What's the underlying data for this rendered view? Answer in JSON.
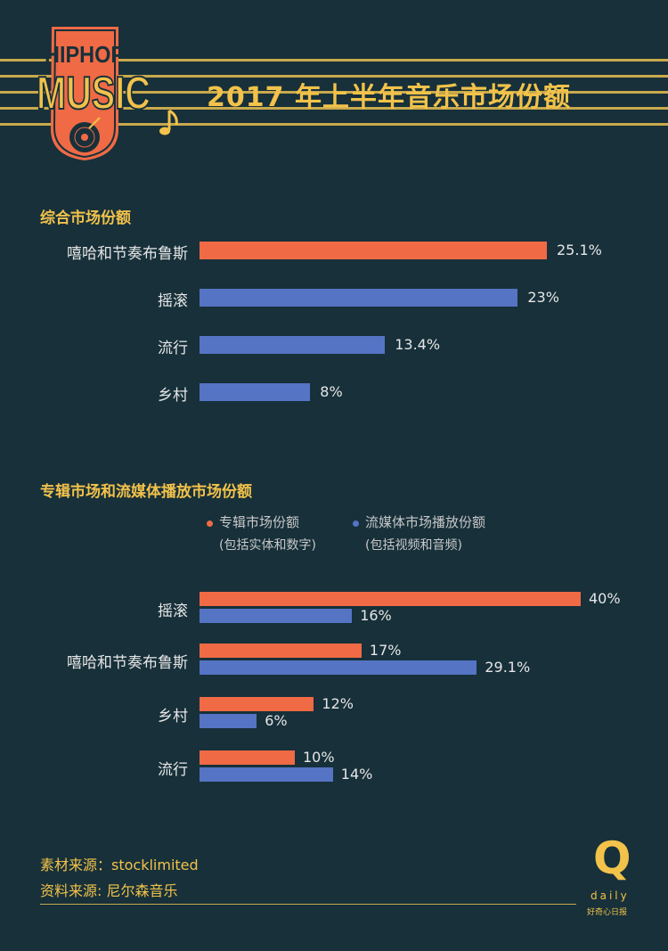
{
  "title": "2017 年上半年音乐市场份额",
  "logo": {
    "line1": "HIPHOP",
    "line2": "MUSIC",
    "note_icon": "music-note-icon",
    "record_icon": "vinyl-record-icon"
  },
  "colors": {
    "background": "#17303a",
    "accent": "#f2c24a",
    "orange": "#ef6a45",
    "blue": "#5574c4"
  },
  "chart_data": [
    {
      "type": "bar",
      "orientation": "horizontal",
      "title": "综合市场份额",
      "categories": [
        "嘻哈和节奏布鲁斯",
        "摇滚",
        "流行",
        "乡村"
      ],
      "values": [
        25.1,
        23,
        13.4,
        8
      ],
      "value_labels": [
        "25.1%",
        "23%",
        "13.4%",
        "8%"
      ],
      "bar_colors": [
        "#ef6a45",
        "#5574c4",
        "#5574c4",
        "#5574c4"
      ]
    },
    {
      "type": "bar",
      "orientation": "horizontal",
      "title": "专辑市场和流媒体播放市场份额",
      "categories": [
        "摇滚",
        "嘻哈和节奏布鲁斯",
        "乡村",
        "流行"
      ],
      "legend_position": "top",
      "series": [
        {
          "name": "专辑市场份额",
          "note": "(包括实体和数字)",
          "color": "#ef6a45",
          "values": [
            40,
            17,
            12,
            10
          ],
          "value_labels": [
            "40%",
            "17%",
            "12%",
            "10%"
          ]
        },
        {
          "name": "流媒体市场播放份额",
          "note": "(包括视频和音频)",
          "color": "#5574c4",
          "values": [
            16,
            29.1,
            6,
            14
          ],
          "value_labels": [
            "16%",
            "29.1%",
            "6%",
            "14%"
          ]
        }
      ]
    }
  ],
  "footer": {
    "source1": "素材来源：stocklimited",
    "source2": "资料来源: 尼尔森音乐",
    "brand_letter": "Q",
    "brand_word": "daily",
    "brand_cn": "好奇心日报"
  }
}
